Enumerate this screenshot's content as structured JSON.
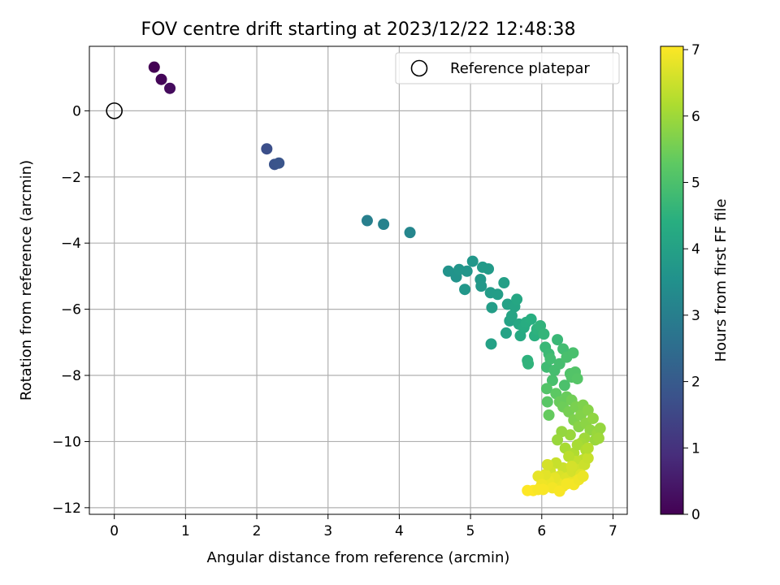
{
  "chart_data": {
    "type": "scatter",
    "title": "FOV centre drift starting at 2023/12/22 12:48:38",
    "xlabel": "Angular distance from reference (arcmin)",
    "ylabel": "Rotation from reference (arcmin)",
    "xlim": [
      -0.35,
      7.2
    ],
    "ylim": [
      -12.2,
      1.95
    ],
    "xticks": [
      0,
      1,
      2,
      3,
      4,
      5,
      6,
      7
    ],
    "yticks": [
      0,
      -2,
      -4,
      -6,
      -8,
      -10,
      -12
    ],
    "grid": true,
    "legend": {
      "placement": "top-right",
      "entries": [
        "Reference platepar"
      ]
    },
    "reference_point": {
      "x": 0,
      "y": 0
    },
    "colorbar": {
      "label": "Hours from first FF file",
      "range": [
        0,
        7.05
      ],
      "ticks": [
        0,
        1,
        2,
        3,
        4,
        5,
        6,
        7
      ],
      "colormap": "viridis"
    },
    "series": [
      {
        "points": [
          {
            "x": 0.56,
            "y": 1.32,
            "h": 0.0
          },
          {
            "x": 0.66,
            "y": 0.95,
            "h": 0.1
          },
          {
            "x": 0.78,
            "y": 0.68,
            "h": 0.2
          },
          {
            "x": 2.14,
            "y": -1.15,
            "h": 1.7
          },
          {
            "x": 2.25,
            "y": -1.62,
            "h": 1.8
          },
          {
            "x": 2.31,
            "y": -1.58,
            "h": 1.85
          },
          {
            "x": 3.55,
            "y": -3.32,
            "h": 3.0
          },
          {
            "x": 3.78,
            "y": -3.43,
            "h": 3.1
          },
          {
            "x": 4.15,
            "y": -3.68,
            "h": 3.2
          },
          {
            "x": 4.69,
            "y": -4.85,
            "h": 3.6
          },
          {
            "x": 4.8,
            "y": -5.02,
            "h": 3.6
          },
          {
            "x": 4.84,
            "y": -4.8,
            "h": 3.65
          },
          {
            "x": 4.92,
            "y": -5.4,
            "h": 3.7
          },
          {
            "x": 4.95,
            "y": -4.85,
            "h": 3.65
          },
          {
            "x": 5.03,
            "y": -4.55,
            "h": 3.7
          },
          {
            "x": 5.14,
            "y": -5.1,
            "h": 3.75
          },
          {
            "x": 5.15,
            "y": -5.3,
            "h": 3.75
          },
          {
            "x": 5.17,
            "y": -4.73,
            "h": 3.8
          },
          {
            "x": 5.25,
            "y": -4.78,
            "h": 3.8
          },
          {
            "x": 5.28,
            "y": -5.5,
            "h": 3.85
          },
          {
            "x": 5.3,
            "y": -5.95,
            "h": 3.9
          },
          {
            "x": 5.29,
            "y": -7.05,
            "h": 4.0
          },
          {
            "x": 5.38,
            "y": -5.55,
            "h": 3.9
          },
          {
            "x": 5.47,
            "y": -5.2,
            "h": 3.95
          },
          {
            "x": 5.5,
            "y": -6.72,
            "h": 4.05
          },
          {
            "x": 5.52,
            "y": -5.85,
            "h": 4.0
          },
          {
            "x": 5.55,
            "y": -6.35,
            "h": 4.05
          },
          {
            "x": 5.58,
            "y": -6.2,
            "h": 4.1
          },
          {
            "x": 5.62,
            "y": -5.92,
            "h": 4.1
          },
          {
            "x": 5.65,
            "y": -5.7,
            "h": 4.15
          },
          {
            "x": 5.68,
            "y": -6.45,
            "h": 4.2
          },
          {
            "x": 5.7,
            "y": -6.8,
            "h": 4.25
          },
          {
            "x": 5.75,
            "y": -6.55,
            "h": 4.3
          },
          {
            "x": 5.78,
            "y": -6.4,
            "h": 4.35
          },
          {
            "x": 5.8,
            "y": -7.55,
            "h": 4.5
          },
          {
            "x": 5.81,
            "y": -7.65,
            "h": 4.55
          },
          {
            "x": 5.85,
            "y": -6.3,
            "h": 4.4
          },
          {
            "x": 5.9,
            "y": -6.8,
            "h": 4.45
          },
          {
            "x": 5.93,
            "y": -6.6,
            "h": 4.5
          },
          {
            "x": 5.98,
            "y": -6.5,
            "h": 4.55
          },
          {
            "x": 6.03,
            "y": -6.75,
            "h": 4.6
          },
          {
            "x": 6.05,
            "y": -7.15,
            "h": 4.7
          },
          {
            "x": 6.07,
            "y": -7.75,
            "h": 4.8
          },
          {
            "x": 6.1,
            "y": -7.35,
            "h": 4.75
          },
          {
            "x": 6.12,
            "y": -7.5,
            "h": 4.85
          },
          {
            "x": 6.15,
            "y": -8.15,
            "h": 4.95
          },
          {
            "x": 6.18,
            "y": -7.85,
            "h": 4.9
          },
          {
            "x": 6.22,
            "y": -6.92,
            "h": 4.7
          },
          {
            "x": 6.25,
            "y": -7.65,
            "h": 4.9
          },
          {
            "x": 6.3,
            "y": -7.2,
            "h": 4.85
          },
          {
            "x": 6.32,
            "y": -8.3,
            "h": 5.0
          },
          {
            "x": 6.35,
            "y": -7.45,
            "h": 4.95
          },
          {
            "x": 6.4,
            "y": -7.95,
            "h": 5.05
          },
          {
            "x": 6.42,
            "y": -8.05,
            "h": 5.1
          },
          {
            "x": 6.44,
            "y": -7.32,
            "h": 4.95
          },
          {
            "x": 6.47,
            "y": -7.9,
            "h": 5.1
          },
          {
            "x": 6.5,
            "y": -8.1,
            "h": 5.15
          },
          {
            "x": 6.07,
            "y": -8.4,
            "h": 5.1
          },
          {
            "x": 6.08,
            "y": -8.8,
            "h": 5.2
          },
          {
            "x": 6.1,
            "y": -9.2,
            "h": 5.35
          },
          {
            "x": 6.2,
            "y": -8.55,
            "h": 5.25
          },
          {
            "x": 6.25,
            "y": -8.8,
            "h": 5.4
          },
          {
            "x": 6.3,
            "y": -8.95,
            "h": 5.45
          },
          {
            "x": 6.35,
            "y": -8.65,
            "h": 5.4
          },
          {
            "x": 6.38,
            "y": -9.1,
            "h": 5.55
          },
          {
            "x": 6.42,
            "y": -8.75,
            "h": 5.5
          },
          {
            "x": 6.45,
            "y": -9.35,
            "h": 5.65
          },
          {
            "x": 6.48,
            "y": -8.95,
            "h": 5.6
          },
          {
            "x": 6.52,
            "y": -9.55,
            "h": 5.75
          },
          {
            "x": 6.55,
            "y": -9.2,
            "h": 5.7
          },
          {
            "x": 6.58,
            "y": -8.9,
            "h": 5.65
          },
          {
            "x": 6.62,
            "y": -9.45,
            "h": 5.8
          },
          {
            "x": 6.65,
            "y": -9.05,
            "h": 5.75
          },
          {
            "x": 6.68,
            "y": -9.65,
            "h": 5.85
          },
          {
            "x": 6.72,
            "y": -9.3,
            "h": 5.85
          },
          {
            "x": 6.75,
            "y": -9.95,
            "h": 5.95
          },
          {
            "x": 6.78,
            "y": -9.75,
            "h": 5.95
          },
          {
            "x": 6.82,
            "y": -9.6,
            "h": 5.9
          },
          {
            "x": 6.8,
            "y": -9.9,
            "h": 6.0
          },
          {
            "x": 6.6,
            "y": -9.9,
            "h": 6.0
          },
          {
            "x": 6.55,
            "y": -10.05,
            "h": 6.05
          },
          {
            "x": 6.4,
            "y": -9.8,
            "h": 5.95
          },
          {
            "x": 6.28,
            "y": -9.7,
            "h": 5.9
          },
          {
            "x": 6.22,
            "y": -9.95,
            "h": 5.95
          },
          {
            "x": 6.33,
            "y": -10.2,
            "h": 6.1
          },
          {
            "x": 6.45,
            "y": -10.35,
            "h": 6.2
          },
          {
            "x": 6.5,
            "y": -10.1,
            "h": 6.1
          },
          {
            "x": 6.62,
            "y": -10.25,
            "h": 6.2
          },
          {
            "x": 6.58,
            "y": -10.55,
            "h": 6.35
          },
          {
            "x": 6.48,
            "y": -10.6,
            "h": 6.4
          },
          {
            "x": 6.38,
            "y": -10.45,
            "h": 6.3
          },
          {
            "x": 6.3,
            "y": -10.8,
            "h": 6.5
          },
          {
            "x": 6.2,
            "y": -10.65,
            "h": 6.45
          },
          {
            "x": 6.12,
            "y": -10.9,
            "h": 6.55
          },
          {
            "x": 6.25,
            "y": -11.05,
            "h": 6.65
          },
          {
            "x": 6.35,
            "y": -11.1,
            "h": 6.7
          },
          {
            "x": 6.43,
            "y": -10.9,
            "h": 6.6
          },
          {
            "x": 6.52,
            "y": -10.85,
            "h": 6.55
          },
          {
            "x": 6.6,
            "y": -10.7,
            "h": 6.5
          },
          {
            "x": 6.65,
            "y": -10.5,
            "h": 6.45
          },
          {
            "x": 6.55,
            "y": -11.0,
            "h": 6.7
          },
          {
            "x": 6.48,
            "y": -11.2,
            "h": 6.8
          },
          {
            "x": 6.4,
            "y": -11.25,
            "h": 6.85
          },
          {
            "x": 6.3,
            "y": -11.35,
            "h": 6.9
          },
          {
            "x": 6.22,
            "y": -11.25,
            "h": 6.85
          },
          {
            "x": 6.18,
            "y": -11.1,
            "h": 6.8
          },
          {
            "x": 6.1,
            "y": -11.2,
            "h": 6.85
          },
          {
            "x": 6.05,
            "y": -11.0,
            "h": 6.75
          },
          {
            "x": 5.95,
            "y": -11.05,
            "h": 6.8
          },
          {
            "x": 6.0,
            "y": -11.3,
            "h": 6.9
          },
          {
            "x": 6.15,
            "y": -11.4,
            "h": 6.95
          },
          {
            "x": 6.25,
            "y": -11.5,
            "h": 7.0
          },
          {
            "x": 6.35,
            "y": -11.28,
            "h": 6.95
          },
          {
            "x": 6.45,
            "y": -11.3,
            "h": 6.95
          },
          {
            "x": 6.52,
            "y": -11.15,
            "h": 6.9
          },
          {
            "x": 6.58,
            "y": -11.05,
            "h": 6.85
          },
          {
            "x": 5.8,
            "y": -11.48,
            "h": 7.05
          },
          {
            "x": 5.88,
            "y": -11.48,
            "h": 7.05
          },
          {
            "x": 5.95,
            "y": -11.45,
            "h": 7.0
          },
          {
            "x": 6.02,
            "y": -11.45,
            "h": 7.0
          },
          {
            "x": 6.08,
            "y": -10.7,
            "h": 6.6
          },
          {
            "x": 6.42,
            "y": -10.75,
            "h": 6.6
          },
          {
            "x": 6.65,
            "y": -10.2,
            "h": 6.25
          }
        ]
      }
    ]
  }
}
